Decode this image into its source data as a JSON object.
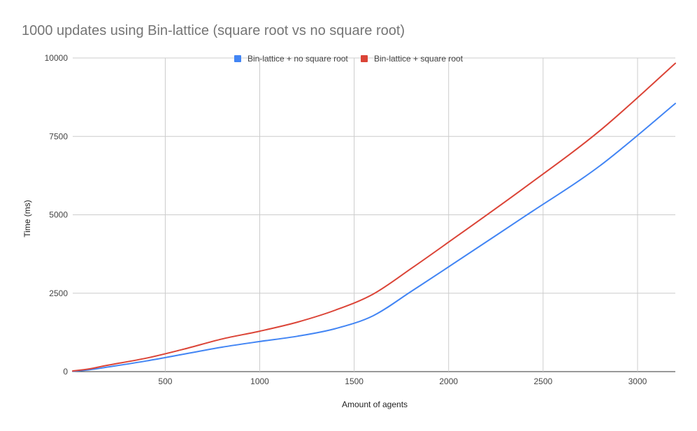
{
  "chart_data": {
    "type": "line",
    "title": "1000 updates using Bin-lattice (square root vs no square root)",
    "xlabel": "Amount of agents",
    "ylabel": "Time (ms)",
    "xlim": [
      10,
      3200
    ],
    "ylim": [
      0,
      10000
    ],
    "x_ticks": [
      500,
      1000,
      1500,
      2000,
      2500,
      3000
    ],
    "y_ticks": [
      0,
      2500,
      5000,
      7500,
      10000
    ],
    "grid": true,
    "legend_position": "top",
    "x": [
      10,
      100,
      200,
      400,
      600,
      800,
      1000,
      1200,
      1400,
      1600,
      1800,
      2000,
      2400,
      2800,
      3200
    ],
    "series": [
      {
        "name": "Bin-lattice + no square root",
        "color": "#4285f4",
        "values": [
          10,
          60,
          150,
          340,
          560,
          780,
          960,
          1130,
          1370,
          1780,
          2550,
          3340,
          4940,
          6560,
          8550
        ]
      },
      {
        "name": "Bin-lattice + square root",
        "color": "#db4437",
        "values": [
          20,
          90,
          210,
          430,
          720,
          1040,
          1290,
          1580,
          1960,
          2470,
          3280,
          4130,
          5860,
          7680,
          9830
        ]
      }
    ]
  }
}
